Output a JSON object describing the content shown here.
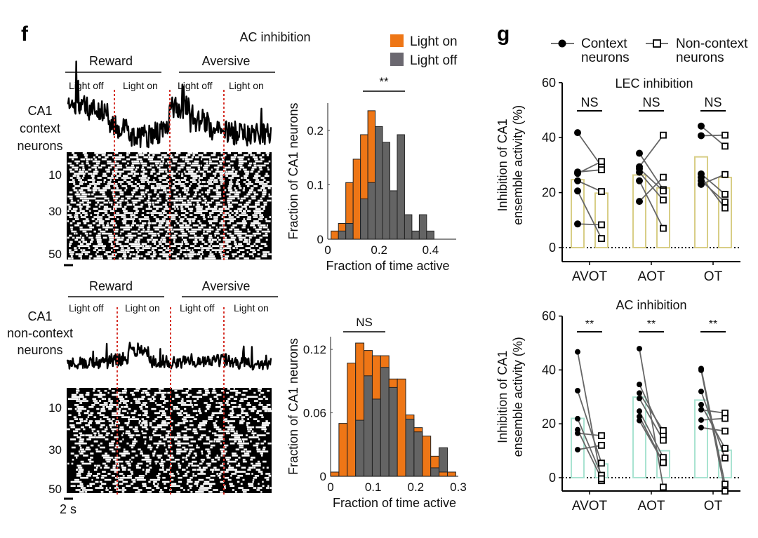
{
  "panels": {
    "f": {
      "letter": "f",
      "title": "AC inhibition",
      "legend": [
        {
          "label": "Light on",
          "color": "#EE7616"
        },
        {
          "label": "Light off",
          "color": "#6B6870"
        }
      ],
      "top": {
        "row_label": [
          "CA1",
          "context",
          "neurons"
        ],
        "condition_labels": [
          "Reward",
          "Aversive"
        ],
        "epoch_labels": [
          "Light off",
          "Light on",
          "Light off",
          "Light on"
        ],
        "raster_ticks": [
          "10",
          "30",
          "50"
        ]
      },
      "bottom": {
        "row_label": [
          "CA1",
          "non-context",
          "neurons"
        ],
        "condition_labels": [
          "Reward",
          "Aversive"
        ],
        "epoch_labels": [
          "Light off",
          "Light on",
          "Light off",
          "Light on"
        ],
        "raster_ticks": [
          "10",
          "30",
          "50"
        ],
        "scale_bar_label": "2 s"
      },
      "divider_color": "#D6332B"
    },
    "g": {
      "letter": "g",
      "legend": [
        {
          "label_lines": [
            "Context",
            "neurons"
          ],
          "marker": "filled-circle"
        },
        {
          "label_lines": [
            "Non-context",
            "neurons"
          ],
          "marker": "open-square"
        }
      ]
    }
  },
  "chart_data": [
    {
      "id": "hist-context",
      "type": "bar",
      "subtype": "overlaid-histogram",
      "title": "",
      "significance": "**",
      "xlabel": "Fraction of time active",
      "ylabel": "Fraction of CA1 neurons",
      "xlim": [
        0,
        0.5
      ],
      "ylim": [
        0,
        0.25
      ],
      "xticks": [
        "0",
        "0.2",
        "0.4"
      ],
      "xtick_values": [
        0,
        0.2,
        0.4
      ],
      "yticks": [
        "0",
        "0.1",
        "0.2"
      ],
      "ytick_values": [
        0,
        0.1,
        0.2
      ],
      "bin_start": 0.013,
      "bin_width": 0.0286,
      "series": [
        {
          "name": "Light on",
          "color": "#EE7616",
          "values": [
            0.015,
            0.029,
            0.104,
            0.147,
            0.192,
            0.236,
            0,
            0,
            0,
            0,
            0,
            0,
            0,
            0
          ]
        },
        {
          "name": "Light off",
          "color": "#646464",
          "values": [
            0,
            0.015,
            0.029,
            0,
            0.074,
            0.104,
            0.207,
            0.178,
            0.089,
            0.192,
            0.045,
            0.015,
            0.045,
            0.015
          ]
        }
      ]
    },
    {
      "id": "hist-noncontext",
      "type": "bar",
      "subtype": "overlaid-histogram",
      "significance": "NS",
      "xlabel": "Fraction of time active",
      "ylabel": "Fraction of CA1 neurons",
      "xlim": [
        0,
        0.3
      ],
      "ylim": [
        0,
        0.132
      ],
      "xticks": [
        "0",
        "0.1",
        "0.2",
        "0.3"
      ],
      "xtick_values": [
        0,
        0.1,
        0.2,
        0.3
      ],
      "yticks": [
        "0",
        "0.06",
        "0.12"
      ],
      "ytick_values": [
        0,
        0.06,
        0.12
      ],
      "bin_start": 0.0,
      "bin_width": 0.0196,
      "series": [
        {
          "name": "Light on",
          "color": "#EE7616",
          "values": [
            0.004,
            0.05,
            0.107,
            0.126,
            0.119,
            0.114,
            0.114,
            0.092,
            0.092,
            0.058,
            0.046,
            0.038,
            0.019,
            0.004,
            0.004
          ]
        },
        {
          "name": "Light off",
          "color": "#646464",
          "values": [
            0,
            0.05,
            0.107,
            0.053,
            0.095,
            0.073,
            0.103,
            0.084,
            0.092,
            0.054,
            0.042,
            0.038,
            0.008,
            0.027,
            0
          ]
        }
      ]
    },
    {
      "id": "lec-inhibition",
      "type": "bar",
      "subtype": "paired-dots-with-bars",
      "title": "LEC inhibition",
      "ylabel": "Inhibition of CA1 ensemble activity (%)",
      "ylabel_lines": [
        "Inhibition of CA1",
        "ensemble activity (%)"
      ],
      "ylim": [
        -5,
        60
      ],
      "yticks": [
        "0",
        "20",
        "40",
        "60"
      ],
      "ytick_values": [
        0,
        20,
        40,
        60
      ],
      "categories": [
        "AVOT",
        "AOT",
        "OT"
      ],
      "significance": [
        "NS",
        "NS",
        "NS"
      ],
      "bar_color": "#D8CE86",
      "series": [
        {
          "name": "Context neurons",
          "marker": "filled-circle",
          "means": [
            24.7,
            26.4,
            33.0
          ],
          "points": [
            [
              41.8,
              27.5,
              27.0,
              24.3,
              20.6,
              8.6
            ],
            [
              34.3,
              29.4,
              28.7,
              27.4,
              24.3,
              16.8
            ],
            [
              44.2,
              40.7,
              26.8,
              25.6,
              24.3,
              23.0
            ]
          ]
        },
        {
          "name": "Non-context neurons",
          "marker": "open-square",
          "means": [
            19.8,
            21.7,
            25.5
          ],
          "points": [
            [
              29.6,
              28.3,
              31.3,
              20.4,
              3.3,
              8.3
            ],
            [
              21.1,
              40.9,
              20.6,
              17.3,
              7.0,
              25.6
            ],
            [
              36.9,
              40.9,
              19.4,
              14.4,
              16.6,
              26.6
            ]
          ]
        }
      ]
    },
    {
      "id": "ac-inhibition",
      "type": "bar",
      "subtype": "paired-dots-with-bars",
      "title": "AC inhibition",
      "ylabel": "Inhibition of CA1 ensemble activity (%)",
      "ylabel_lines": [
        "Inhibition of CA1",
        "ensemble activity (%)"
      ],
      "ylim": [
        -5,
        60
      ],
      "yticks": [
        "0",
        "20",
        "40",
        "60"
      ],
      "ytick_values": [
        0,
        20,
        40,
        60
      ],
      "categories": [
        "AVOT",
        "AOT",
        "OT"
      ],
      "significance": [
        "**",
        "**",
        "**"
      ],
      "bar_color": "#A9E3D1",
      "series": [
        {
          "name": "Context neurons",
          "marker": "filled-circle",
          "means": [
            22.0,
            29.9,
            28.8
          ],
          "points": [
            [
              46.7,
              32.3,
              21.9,
              17.8,
              16.5,
              10.4
            ],
            [
              47.9,
              34.6,
              31.4,
              29.4,
              24.7,
              22.7,
              21.2
            ],
            [
              40.5,
              39.9,
              32.0,
              27.1,
              25.2,
              21.4,
              18.6
            ]
          ]
        },
        {
          "name": "Non-context neurons",
          "marker": "open-square",
          "means": [
            5.1,
            10.0,
            10.2
          ],
          "points": [
            [
              -1.1,
              5.4,
              0.9,
              -0.4,
              15.6,
              12.0
            ],
            [
              -3.5,
              15.8,
              17.5,
              13.9,
              7.5,
              5.6,
              5.6
            ],
            [
              -2.4,
              -5.0,
              7.3,
              10.9,
              24.0,
              22.0,
              17.3
            ]
          ]
        }
      ]
    }
  ]
}
